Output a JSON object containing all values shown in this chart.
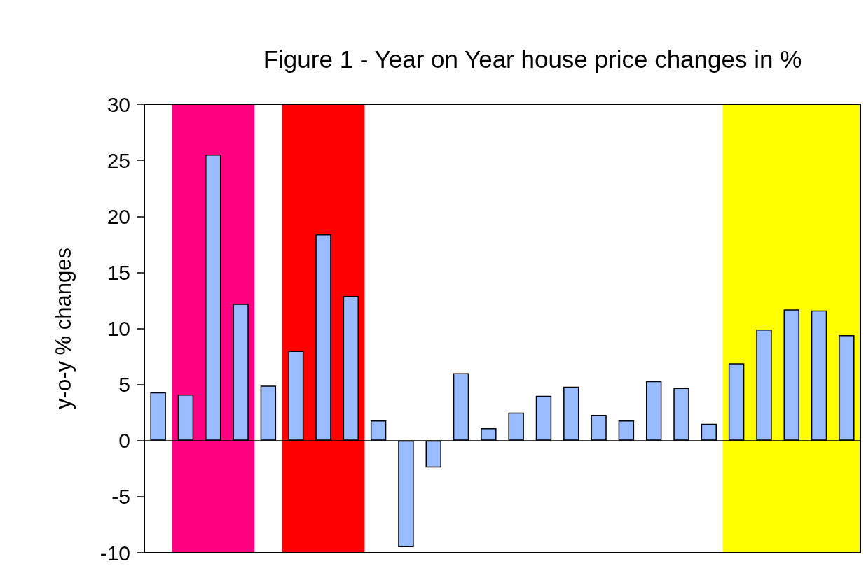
{
  "chart_data": {
    "type": "bar",
    "title": "Figure 1 - Year on Year house price changes in %",
    "ylabel": "y-o-y % changes",
    "categories": [
      null,
      null,
      null,
      null,
      null,
      null,
      null,
      null,
      null,
      null,
      null,
      null,
      null,
      null,
      null,
      null,
      null,
      null,
      null,
      null,
      null,
      null,
      null,
      null,
      null,
      null
    ],
    "values": [
      4.3,
      4.1,
      25.5,
      12.2,
      4.9,
      8.0,
      18.4,
      12.9,
      1.8,
      -9.5,
      -2.4,
      6.0,
      1.1,
      2.5,
      4.0,
      4.8,
      2.3,
      1.8,
      5.3,
      4.7,
      1.5,
      6.9,
      9.9,
      11.7,
      11.6,
      9.4
    ],
    "color": "#99bbff",
    "ylim": [
      -10,
      30
    ],
    "yticks": [
      -10,
      -5,
      0,
      5,
      10,
      15,
      20,
      25,
      30
    ]
  }
}
